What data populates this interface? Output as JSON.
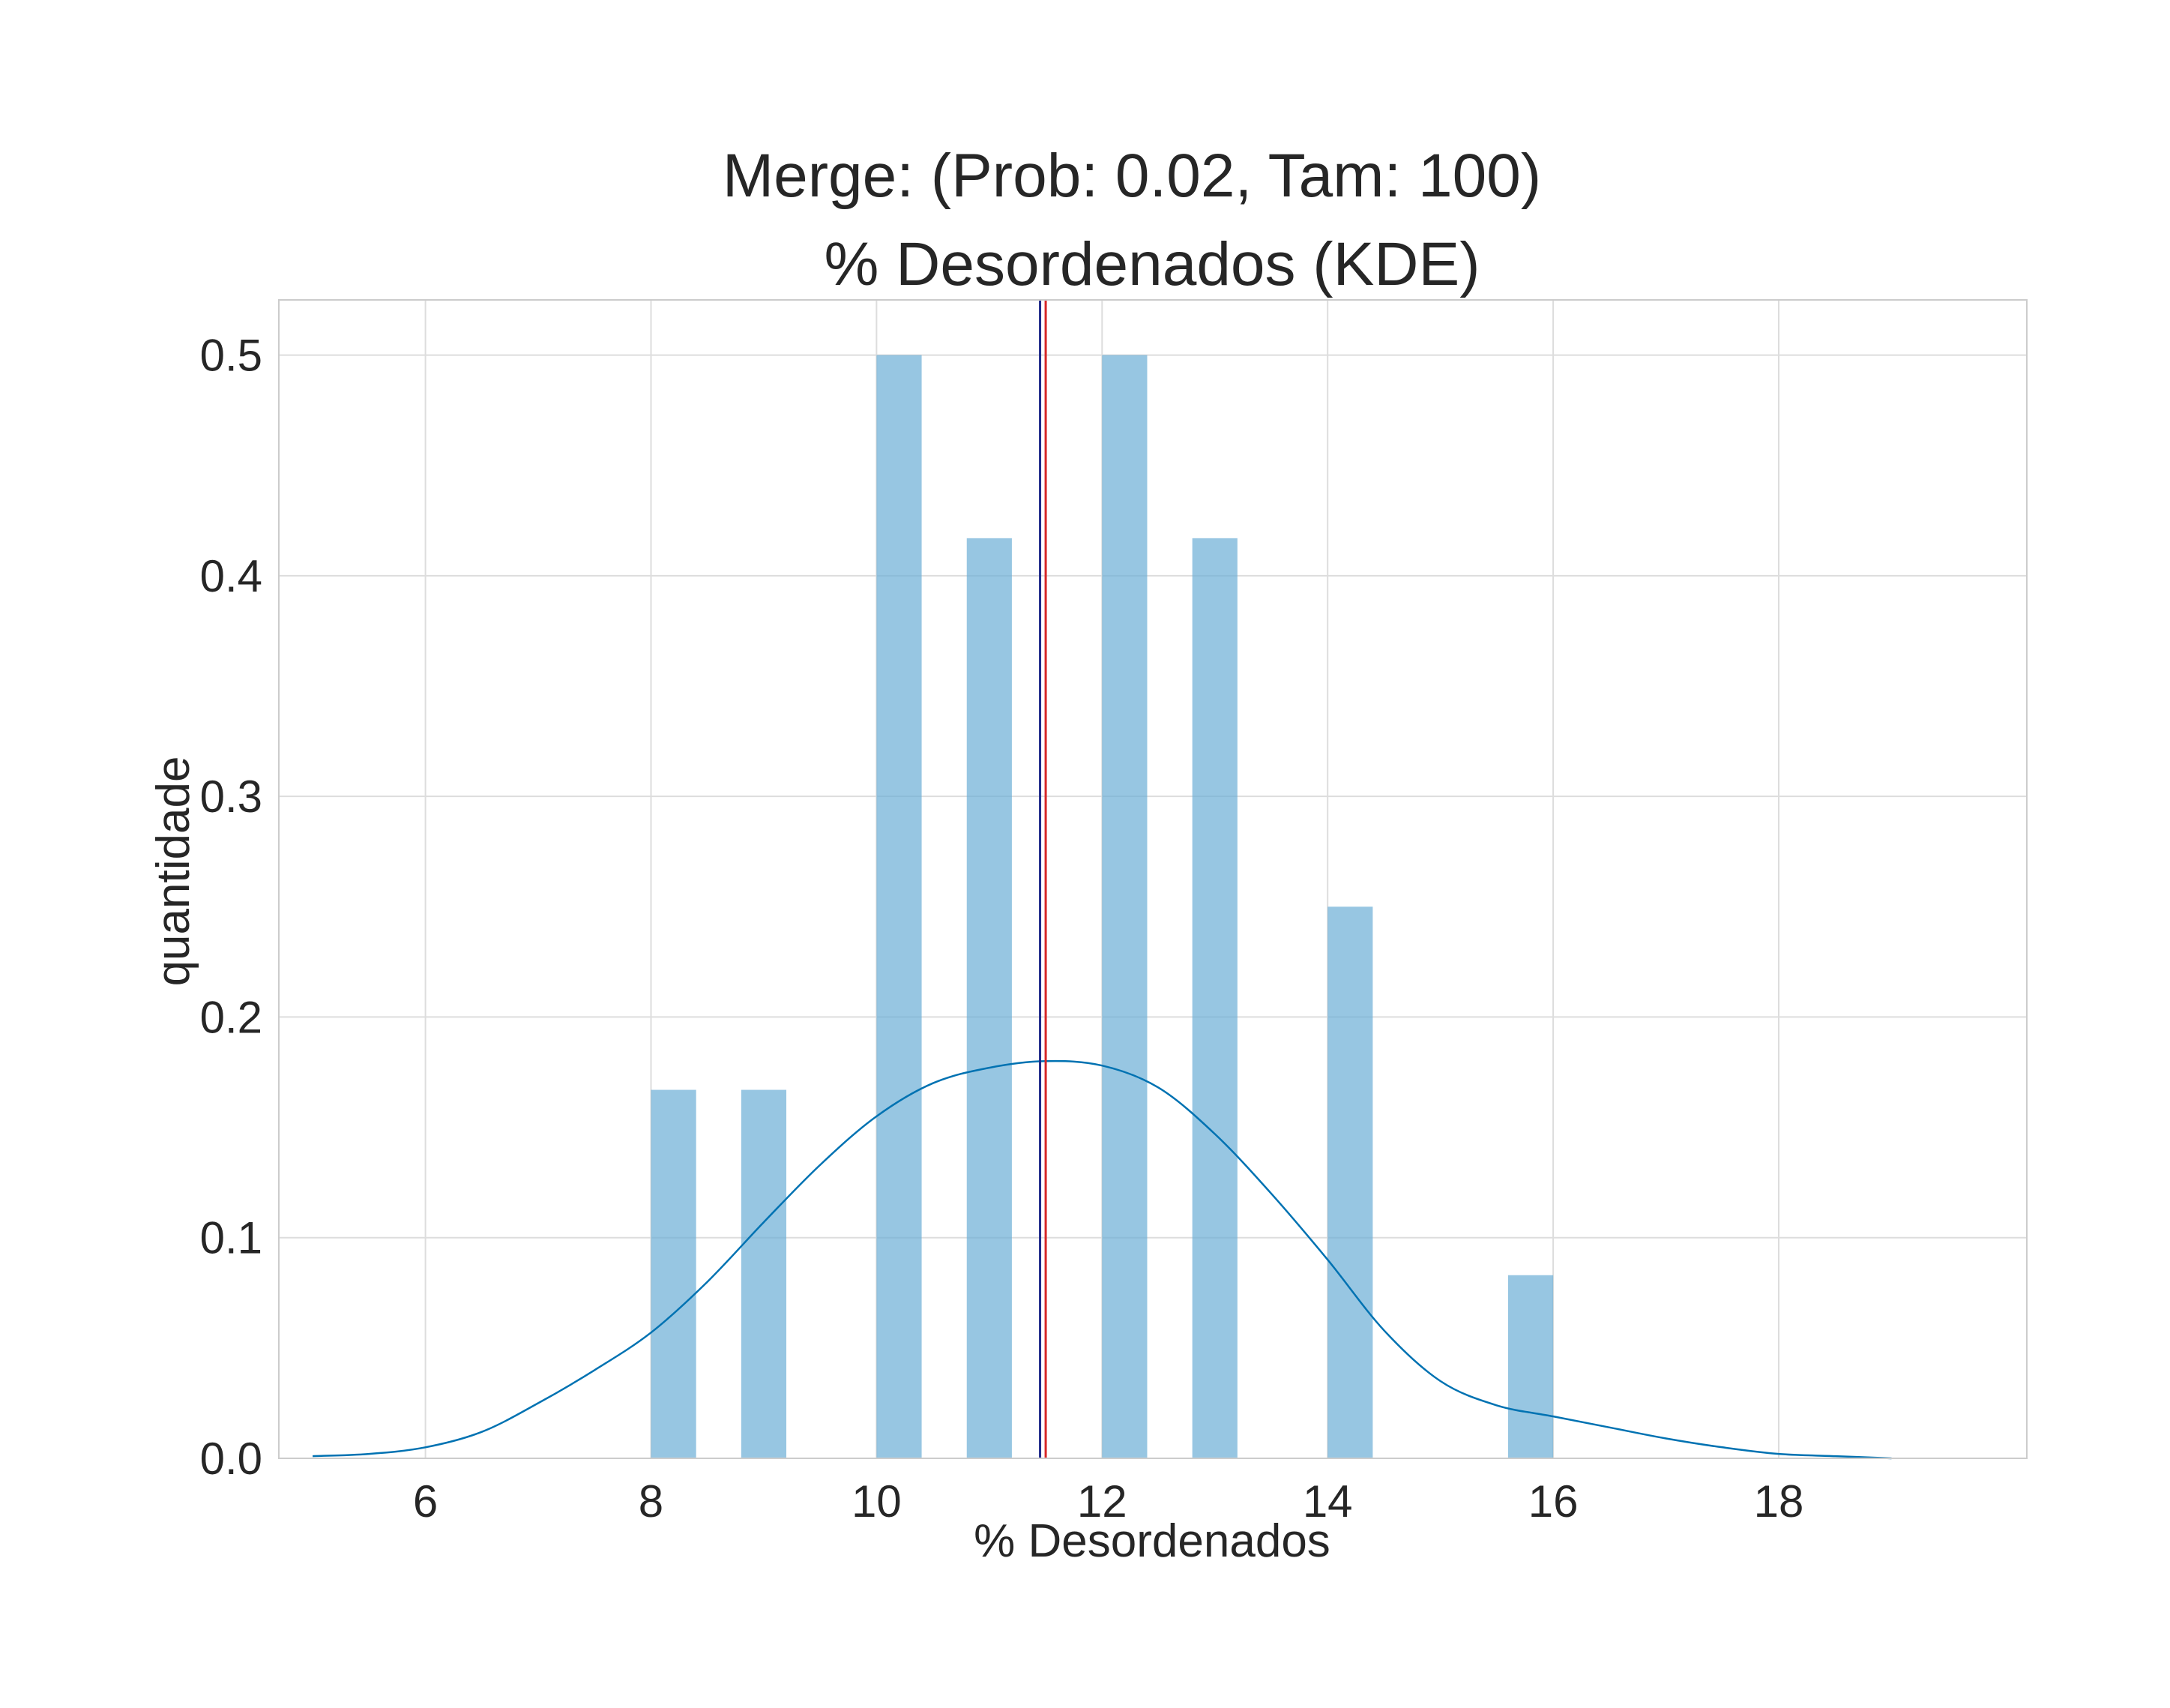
{
  "chart_data": {
    "type": "bar",
    "title": "Merge: (Prob: 0.02, Tam: 100)",
    "subtitle": "% Desordenados (KDE)",
    "xlabel": "% Desordenados",
    "ylabel": "quantidade",
    "xlim": [
      4.7,
      20.2
    ],
    "ylim": [
      0,
      0.525
    ],
    "xticks": [
      "6",
      "8",
      "10",
      "12",
      "14",
      "16",
      "18"
    ],
    "yticks": [
      "0.0",
      "0.1",
      "0.2",
      "0.3",
      "0.4",
      "0.5"
    ],
    "grid": true,
    "bins": [
      {
        "x0": 8.0,
        "x1": 8.4,
        "value": 0.167
      },
      {
        "x0": 8.8,
        "x1": 9.2,
        "value": 0.167
      },
      {
        "x0": 10.0,
        "x1": 10.4,
        "value": 0.5
      },
      {
        "x0": 10.8,
        "x1": 11.2,
        "value": 0.417
      },
      {
        "x0": 12.0,
        "x1": 12.4,
        "value": 0.5
      },
      {
        "x0": 12.8,
        "x1": 13.2,
        "value": 0.417
      },
      {
        "x0": 14.0,
        "x1": 14.4,
        "value": 0.25
      },
      {
        "x0": 15.6,
        "x1": 16.0,
        "value": 0.083
      }
    ],
    "kde": {
      "x": [
        5.0,
        5.5,
        6.0,
        6.5,
        7.0,
        7.5,
        8.0,
        8.5,
        9.0,
        9.5,
        10.0,
        10.5,
        11.0,
        11.5,
        12.0,
        12.5,
        13.0,
        13.5,
        14.0,
        14.5,
        15.0,
        15.5,
        16.0,
        16.5,
        17.0,
        17.5,
        18.0,
        18.5,
        19.0
      ],
      "y": [
        0.001,
        0.002,
        0.005,
        0.012,
        0.025,
        0.04,
        0.057,
        0.08,
        0.107,
        0.133,
        0.155,
        0.17,
        0.177,
        0.18,
        0.178,
        0.168,
        0.147,
        0.12,
        0.09,
        0.058,
        0.035,
        0.024,
        0.019,
        0.014,
        0.009,
        0.005,
        0.002,
        0.001,
        0.0
      ],
      "color": "#0072b2"
    },
    "bar_color": "#6baed6",
    "vlines": [
      {
        "x": 11.45,
        "color": "#1f2a8a"
      },
      {
        "x": 11.5,
        "color": "#d62728"
      }
    ]
  }
}
